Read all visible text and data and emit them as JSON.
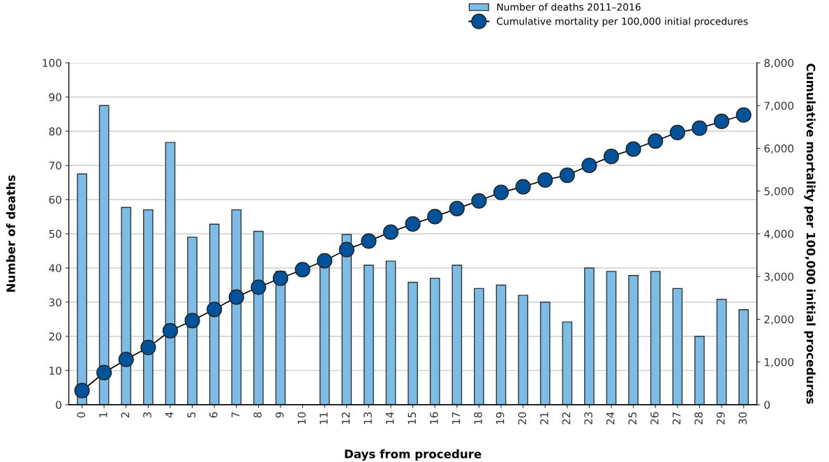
{
  "chart_data": {
    "type": "bar",
    "xlabel": "Days from procedure",
    "ylabel": "Number of deaths",
    "y2label": "Cumulative mortality per 100,000 initial procedures",
    "categories": [
      "0",
      "1",
      "2",
      "3",
      "4",
      "5",
      "6",
      "7",
      "8",
      "9",
      "10",
      "11",
      "12",
      "13",
      "14",
      "15",
      "16",
      "17",
      "18",
      "19",
      "20",
      "21",
      "22",
      "23",
      "24",
      "25",
      "26",
      "27",
      "28",
      "29",
      "30"
    ],
    "series": [
      {
        "name": "Number of deaths 2011–2016",
        "color": "#7bbde6",
        "values": [
          67.5,
          87.5,
          57.7,
          57,
          76.7,
          49,
          52.8,
          57,
          50.7,
          39,
          null,
          41,
          49.8,
          40.8,
          42,
          35.8,
          37,
          40.8,
          34,
          35,
          32,
          30,
          24.2,
          40,
          39,
          37.8,
          39,
          34,
          20,
          30.8,
          27.8
        ]
      },
      {
        "name": "Cumulative mortality per 100,000 initial procedures",
        "type": "line",
        "axis": "y2",
        "color": "#00529b",
        "marker": "circle",
        "values": [
          330,
          750,
          1060,
          1340,
          1730,
          1970,
          2230,
          2520,
          2750,
          2960,
          3160,
          3370,
          3630,
          3830,
          4040,
          4230,
          4400,
          4590,
          4770,
          4970,
          5100,
          5260,
          5370,
          5600,
          5810,
          5980,
          6170,
          6370,
          6470,
          6630,
          6780
        ]
      }
    ],
    "ylim": [
      0,
      100
    ],
    "yticks": [
      0,
      10,
      20,
      30,
      40,
      50,
      60,
      70,
      80,
      90,
      100
    ],
    "y2lim": [
      0,
      8000
    ],
    "y2ticks": [
      0,
      {
        "value": 1000,
        "label": "1,000"
      },
      {
        "value": 2000,
        "label": "2,000"
      },
      {
        "value": 3000,
        "label": "3,000"
      },
      {
        "value": 4000,
        "label": "4,000"
      },
      {
        "value": 5000,
        "label": "5,000"
      },
      {
        "value": 6000,
        "label": "6,000"
      },
      {
        "value": 7000,
        "label": "7,000"
      },
      {
        "value": 8000,
        "label": "8,000"
      }
    ],
    "grid": "y",
    "legend": "top right"
  }
}
